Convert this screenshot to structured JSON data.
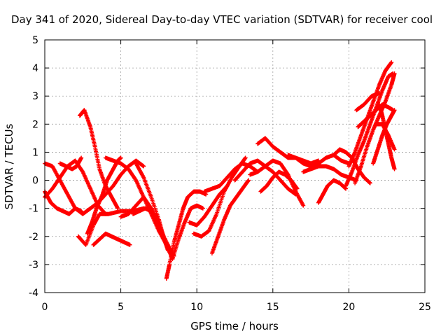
{
  "chart_data": {
    "type": "scatter",
    "title": "Day 341 of 2020, Sidereal Day-to-day VTEC variation (SDTVAR) for receiver cool",
    "xlabel": "GPS time / hours",
    "ylabel": "SDTVAR / TECUs",
    "xlim": [
      0,
      25
    ],
    "ylim": [
      -4,
      5
    ],
    "x_ticks": [
      "0",
      "5",
      "10",
      "15",
      "20",
      "25"
    ],
    "y_ticks": [
      "-4",
      "-3",
      "-2",
      "-1",
      "0",
      "1",
      "2",
      "3",
      "4",
      "5"
    ],
    "grid": true,
    "marker": "+",
    "color": "#ff0000",
    "series": [
      {
        "name": "s1",
        "x": [
          0.0,
          0.5,
          1.0,
          1.5,
          2.0,
          2.5,
          3.0,
          3.5,
          4.0
        ],
        "y": [
          -0.6,
          -0.3,
          0.1,
          0.5,
          0.7,
          0.3,
          -0.3,
          -0.9,
          -1.2
        ]
      },
      {
        "name": "s2",
        "x": [
          0.0,
          0.5,
          1.0,
          1.5,
          2.0,
          2.5,
          3.0
        ],
        "y": [
          0.6,
          0.5,
          0.0,
          -0.5,
          -1.0,
          -1.2,
          -1.0
        ]
      },
      {
        "name": "s3",
        "x": [
          0.0,
          0.4,
          0.8,
          1.2,
          1.6,
          2.0,
          2.4
        ],
        "y": [
          -0.4,
          -0.8,
          -1.0,
          -1.1,
          -1.2,
          -1.0,
          -1.1
        ]
      },
      {
        "name": "s4",
        "x": [
          1.0,
          1.4,
          1.8,
          2.1,
          2.4
        ],
        "y": [
          0.6,
          0.5,
          0.4,
          0.5,
          0.8
        ]
      },
      {
        "name": "s5",
        "x": [
          2.3,
          2.6,
          3.0,
          3.3,
          3.6,
          4.0,
          4.4,
          4.8
        ],
        "y": [
          2.3,
          2.5,
          1.9,
          1.2,
          0.4,
          -0.2,
          -0.6,
          -1.0
        ]
      },
      {
        "name": "s6",
        "x": [
          2.2,
          2.7,
          3.2,
          3.6,
          4.2,
          5.0,
          5.8,
          6.5
        ],
        "y": [
          -2.0,
          -2.3,
          -1.6,
          -1.2,
          -1.2,
          -1.1,
          -1.1,
          -1.0
        ]
      },
      {
        "name": "s7",
        "x": [
          2.8,
          3.1,
          3.4,
          3.8,
          4.1,
          4.5,
          4.8,
          5.0
        ],
        "y": [
          -1.9,
          -1.5,
          -1.0,
          -0.5,
          0.0,
          0.4,
          0.7,
          0.8
        ]
      },
      {
        "name": "s8",
        "x": [
          3.2,
          3.6,
          4.0,
          4.4,
          4.8,
          5.2,
          5.6
        ],
        "y": [
          -2.3,
          -2.1,
          -1.9,
          -2.0,
          -2.1,
          -2.2,
          -2.3
        ]
      },
      {
        "name": "s9",
        "x": [
          3.0,
          3.5,
          4.0,
          4.5,
          5.0,
          5.5,
          6.0,
          6.5
        ],
        "y": [
          -1.0,
          -0.8,
          -0.5,
          -0.2,
          0.2,
          0.5,
          0.7,
          0.5
        ]
      },
      {
        "name": "s10",
        "x": [
          4.0,
          4.5,
          5.0,
          5.5,
          6.0,
          6.5,
          7.0,
          7.5,
          8.0,
          8.4
        ],
        "y": [
          0.8,
          0.7,
          0.6,
          0.4,
          0.0,
          -0.6,
          -1.2,
          -1.8,
          -2.3,
          -2.8
        ]
      },
      {
        "name": "s11",
        "x": [
          5.0,
          5.5,
          6.0,
          6.5,
          7.0,
          7.5,
          8.0,
          8.5
        ],
        "y": [
          -1.3,
          -1.2,
          -0.9,
          -0.6,
          -1.0,
          -1.6,
          -2.2,
          -2.7
        ]
      },
      {
        "name": "s12",
        "x": [
          6.0,
          6.5,
          7.0,
          7.5,
          7.8,
          8.1
        ],
        "y": [
          0.6,
          0.1,
          -0.6,
          -1.4,
          -2.0,
          -2.5
        ]
      },
      {
        "name": "s13",
        "x": [
          5.8,
          6.2,
          6.6,
          7.0,
          7.4
        ],
        "y": [
          -1.2,
          -1.1,
          -1.0,
          -1.1,
          -1.3
        ]
      },
      {
        "name": "s14",
        "x": [
          8.0,
          8.2,
          8.5,
          8.8,
          9.1,
          9.4,
          9.8,
          10.2,
          10.6
        ],
        "y": [
          -3.5,
          -3.0,
          -2.2,
          -1.6,
          -1.0,
          -0.6,
          -0.4,
          -0.4,
          -0.5
        ]
      },
      {
        "name": "s15",
        "x": [
          8.4,
          8.8,
          9.2,
          9.6,
          10.0,
          10.4
        ],
        "y": [
          -2.8,
          -2.1,
          -1.5,
          -1.0,
          -0.9,
          -1.0
        ]
      },
      {
        "name": "s16",
        "x": [
          9.8,
          10.3,
          10.8,
          11.3,
          11.8,
          12.3,
          12.8,
          13.2
        ],
        "y": [
          -1.9,
          -2.0,
          -1.8,
          -1.2,
          -0.4,
          0.1,
          0.5,
          0.8
        ]
      },
      {
        "name": "s17",
        "x": [
          11.0,
          11.4,
          11.8,
          12.2,
          12.6,
          13.0,
          13.4
        ],
        "y": [
          -2.6,
          -2.0,
          -1.4,
          -0.9,
          -0.6,
          -0.3,
          0.0
        ]
      },
      {
        "name": "s18",
        "x": [
          10.5,
          11.0,
          11.5,
          12.0,
          12.5,
          13.0,
          13.5,
          14.0
        ],
        "y": [
          -0.4,
          -0.3,
          -0.2,
          0.1,
          0.4,
          0.6,
          0.5,
          0.3
        ]
      },
      {
        "name": "s19",
        "x": [
          9.5,
          10.0,
          10.5,
          11.0,
          11.5,
          12.0
        ],
        "y": [
          -1.5,
          -1.6,
          -1.3,
          -0.9,
          -0.5,
          -0.2
        ]
      },
      {
        "name": "s20",
        "x": [
          12.5,
          13.0,
          13.5,
          14.0,
          14.5,
          15.0,
          15.5,
          16.0,
          16.5
        ],
        "y": [
          0.0,
          0.3,
          0.6,
          0.7,
          0.5,
          0.3,
          0.0,
          -0.3,
          -0.5
        ]
      },
      {
        "name": "s21",
        "x": [
          13.5,
          14.0,
          14.5,
          15.0,
          15.5,
          16.0,
          16.5,
          17.0
        ],
        "y": [
          0.2,
          0.3,
          0.5,
          0.7,
          0.6,
          0.2,
          -0.4,
          -0.9
        ]
      },
      {
        "name": "s22",
        "x": [
          14.0,
          14.5,
          15.0,
          15.5,
          16.0,
          16.5,
          17.0,
          17.5,
          18.0
        ],
        "y": [
          1.3,
          1.5,
          1.2,
          1.0,
          0.8,
          0.8,
          0.7,
          0.6,
          0.7
        ]
      },
      {
        "name": "s23",
        "x": [
          14.2,
          14.6,
          15.0,
          15.4,
          15.8,
          16.2,
          16.6
        ],
        "y": [
          -0.4,
          -0.2,
          0.1,
          0.3,
          0.2,
          0.0,
          -0.3
        ]
      },
      {
        "name": "s24",
        "x": [
          16.0,
          16.5,
          17.0,
          17.5,
          18.0,
          18.5,
          19.0,
          19.5,
          20.0
        ],
        "y": [
          0.9,
          0.8,
          0.6,
          0.5,
          0.6,
          0.8,
          0.9,
          0.7,
          0.6
        ]
      },
      {
        "name": "s25",
        "x": [
          17.0,
          17.5,
          18.0,
          18.5,
          19.0,
          19.5,
          20.0,
          20.5
        ],
        "y": [
          0.3,
          0.4,
          0.5,
          0.5,
          0.4,
          0.2,
          0.1,
          0.0
        ]
      },
      {
        "name": "s26",
        "x": [
          18.0,
          18.3,
          18.6,
          19.0,
          19.4,
          19.8
        ],
        "y": [
          -0.8,
          -0.5,
          -0.2,
          0.0,
          -0.1,
          -0.3
        ]
      },
      {
        "name": "s27",
        "x": [
          19.0,
          19.4,
          19.8,
          20.2,
          20.6,
          21.0,
          21.4
        ],
        "y": [
          0.9,
          1.1,
          1.0,
          0.8,
          0.4,
          0.1,
          -0.1
        ]
      },
      {
        "name": "s28",
        "x": [
          19.8,
          20.2,
          20.6,
          21.0,
          21.4,
          21.8,
          22.2,
          22.6,
          22.9
        ],
        "y": [
          -0.2,
          0.3,
          0.9,
          1.4,
          2.0,
          2.6,
          3.2,
          3.7,
          3.8
        ]
      },
      {
        "name": "s29",
        "x": [
          20.0,
          20.4,
          20.8,
          21.2,
          21.6,
          22.0,
          22.4,
          22.8
        ],
        "y": [
          0.5,
          1.0,
          1.6,
          2.2,
          2.8,
          3.4,
          3.9,
          4.2
        ]
      },
      {
        "name": "s30",
        "x": [
          20.4,
          20.8,
          21.2,
          21.6,
          22.0,
          22.4,
          22.8,
          23.0
        ],
        "y": [
          -0.1,
          0.5,
          1.2,
          1.8,
          2.3,
          2.8,
          3.4,
          3.8
        ]
      },
      {
        "name": "s31",
        "x": [
          20.6,
          21.0,
          21.4,
          21.8,
          22.2,
          22.6,
          22.9
        ],
        "y": [
          1.9,
          2.1,
          2.3,
          2.5,
          2.7,
          2.6,
          2.5
        ]
      },
      {
        "name": "s32",
        "x": [
          21.6,
          21.9,
          22.2,
          22.5,
          22.8,
          23.0
        ],
        "y": [
          0.6,
          1.1,
          1.6,
          2.0,
          2.3,
          2.5
        ]
      },
      {
        "name": "s33",
        "x": [
          22.0,
          22.2,
          22.4,
          22.6,
          22.8,
          23.0
        ],
        "y": [
          2.7,
          2.3,
          1.8,
          1.3,
          0.8,
          0.4
        ]
      },
      {
        "name": "s34",
        "x": [
          20.5,
          21.0,
          21.5,
          22.0
        ],
        "y": [
          2.5,
          2.7,
          3.0,
          3.1
        ]
      },
      {
        "name": "s35",
        "x": [
          21.8,
          22.2,
          22.6,
          23.0
        ],
        "y": [
          2.0,
          2.0,
          1.6,
          1.1
        ]
      }
    ]
  }
}
